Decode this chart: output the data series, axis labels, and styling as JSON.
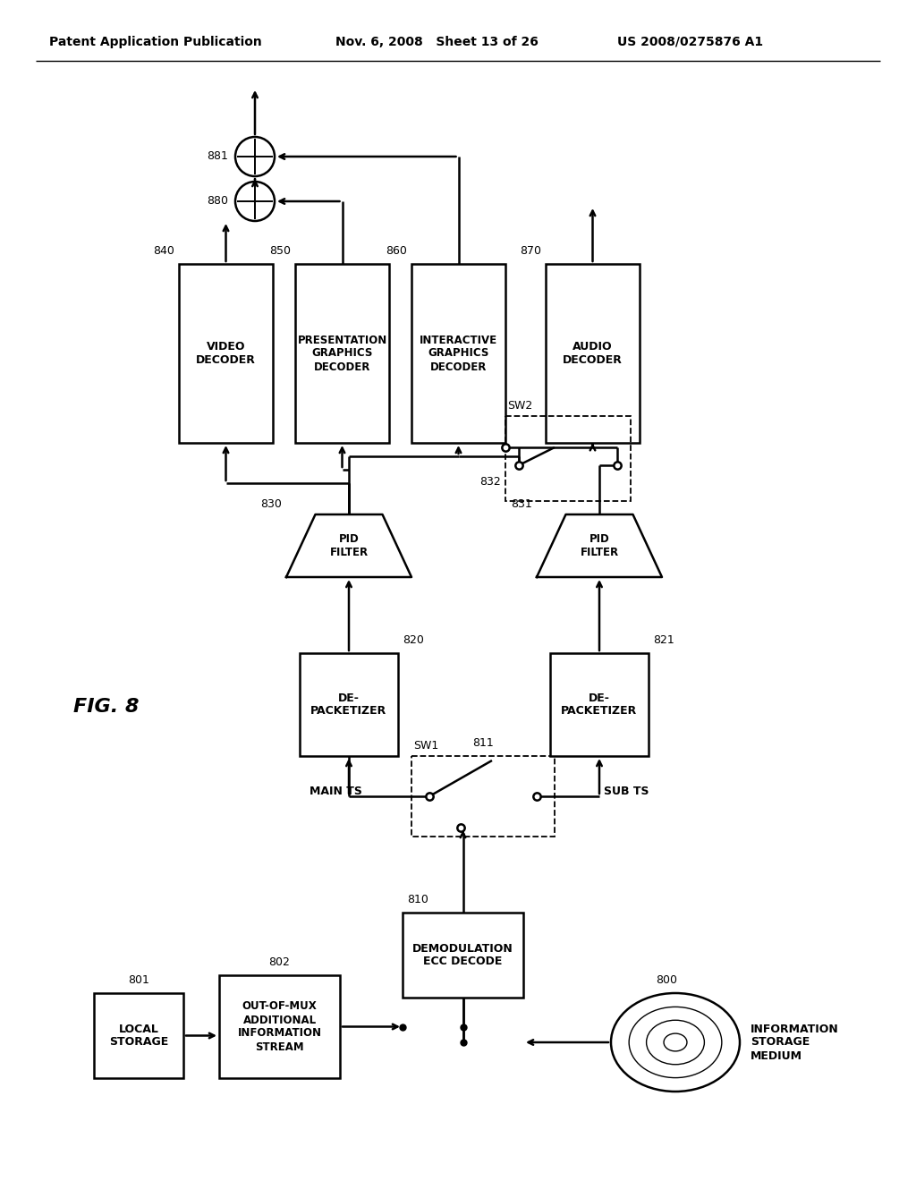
{
  "header_left": "Patent Application Publication",
  "header_mid": "Nov. 6, 2008   Sheet 13 of 26",
  "header_right": "US 2008/0275876 A1",
  "fig_label": "FIG. 8",
  "bg": "#ffffff",
  "lc": "#000000"
}
